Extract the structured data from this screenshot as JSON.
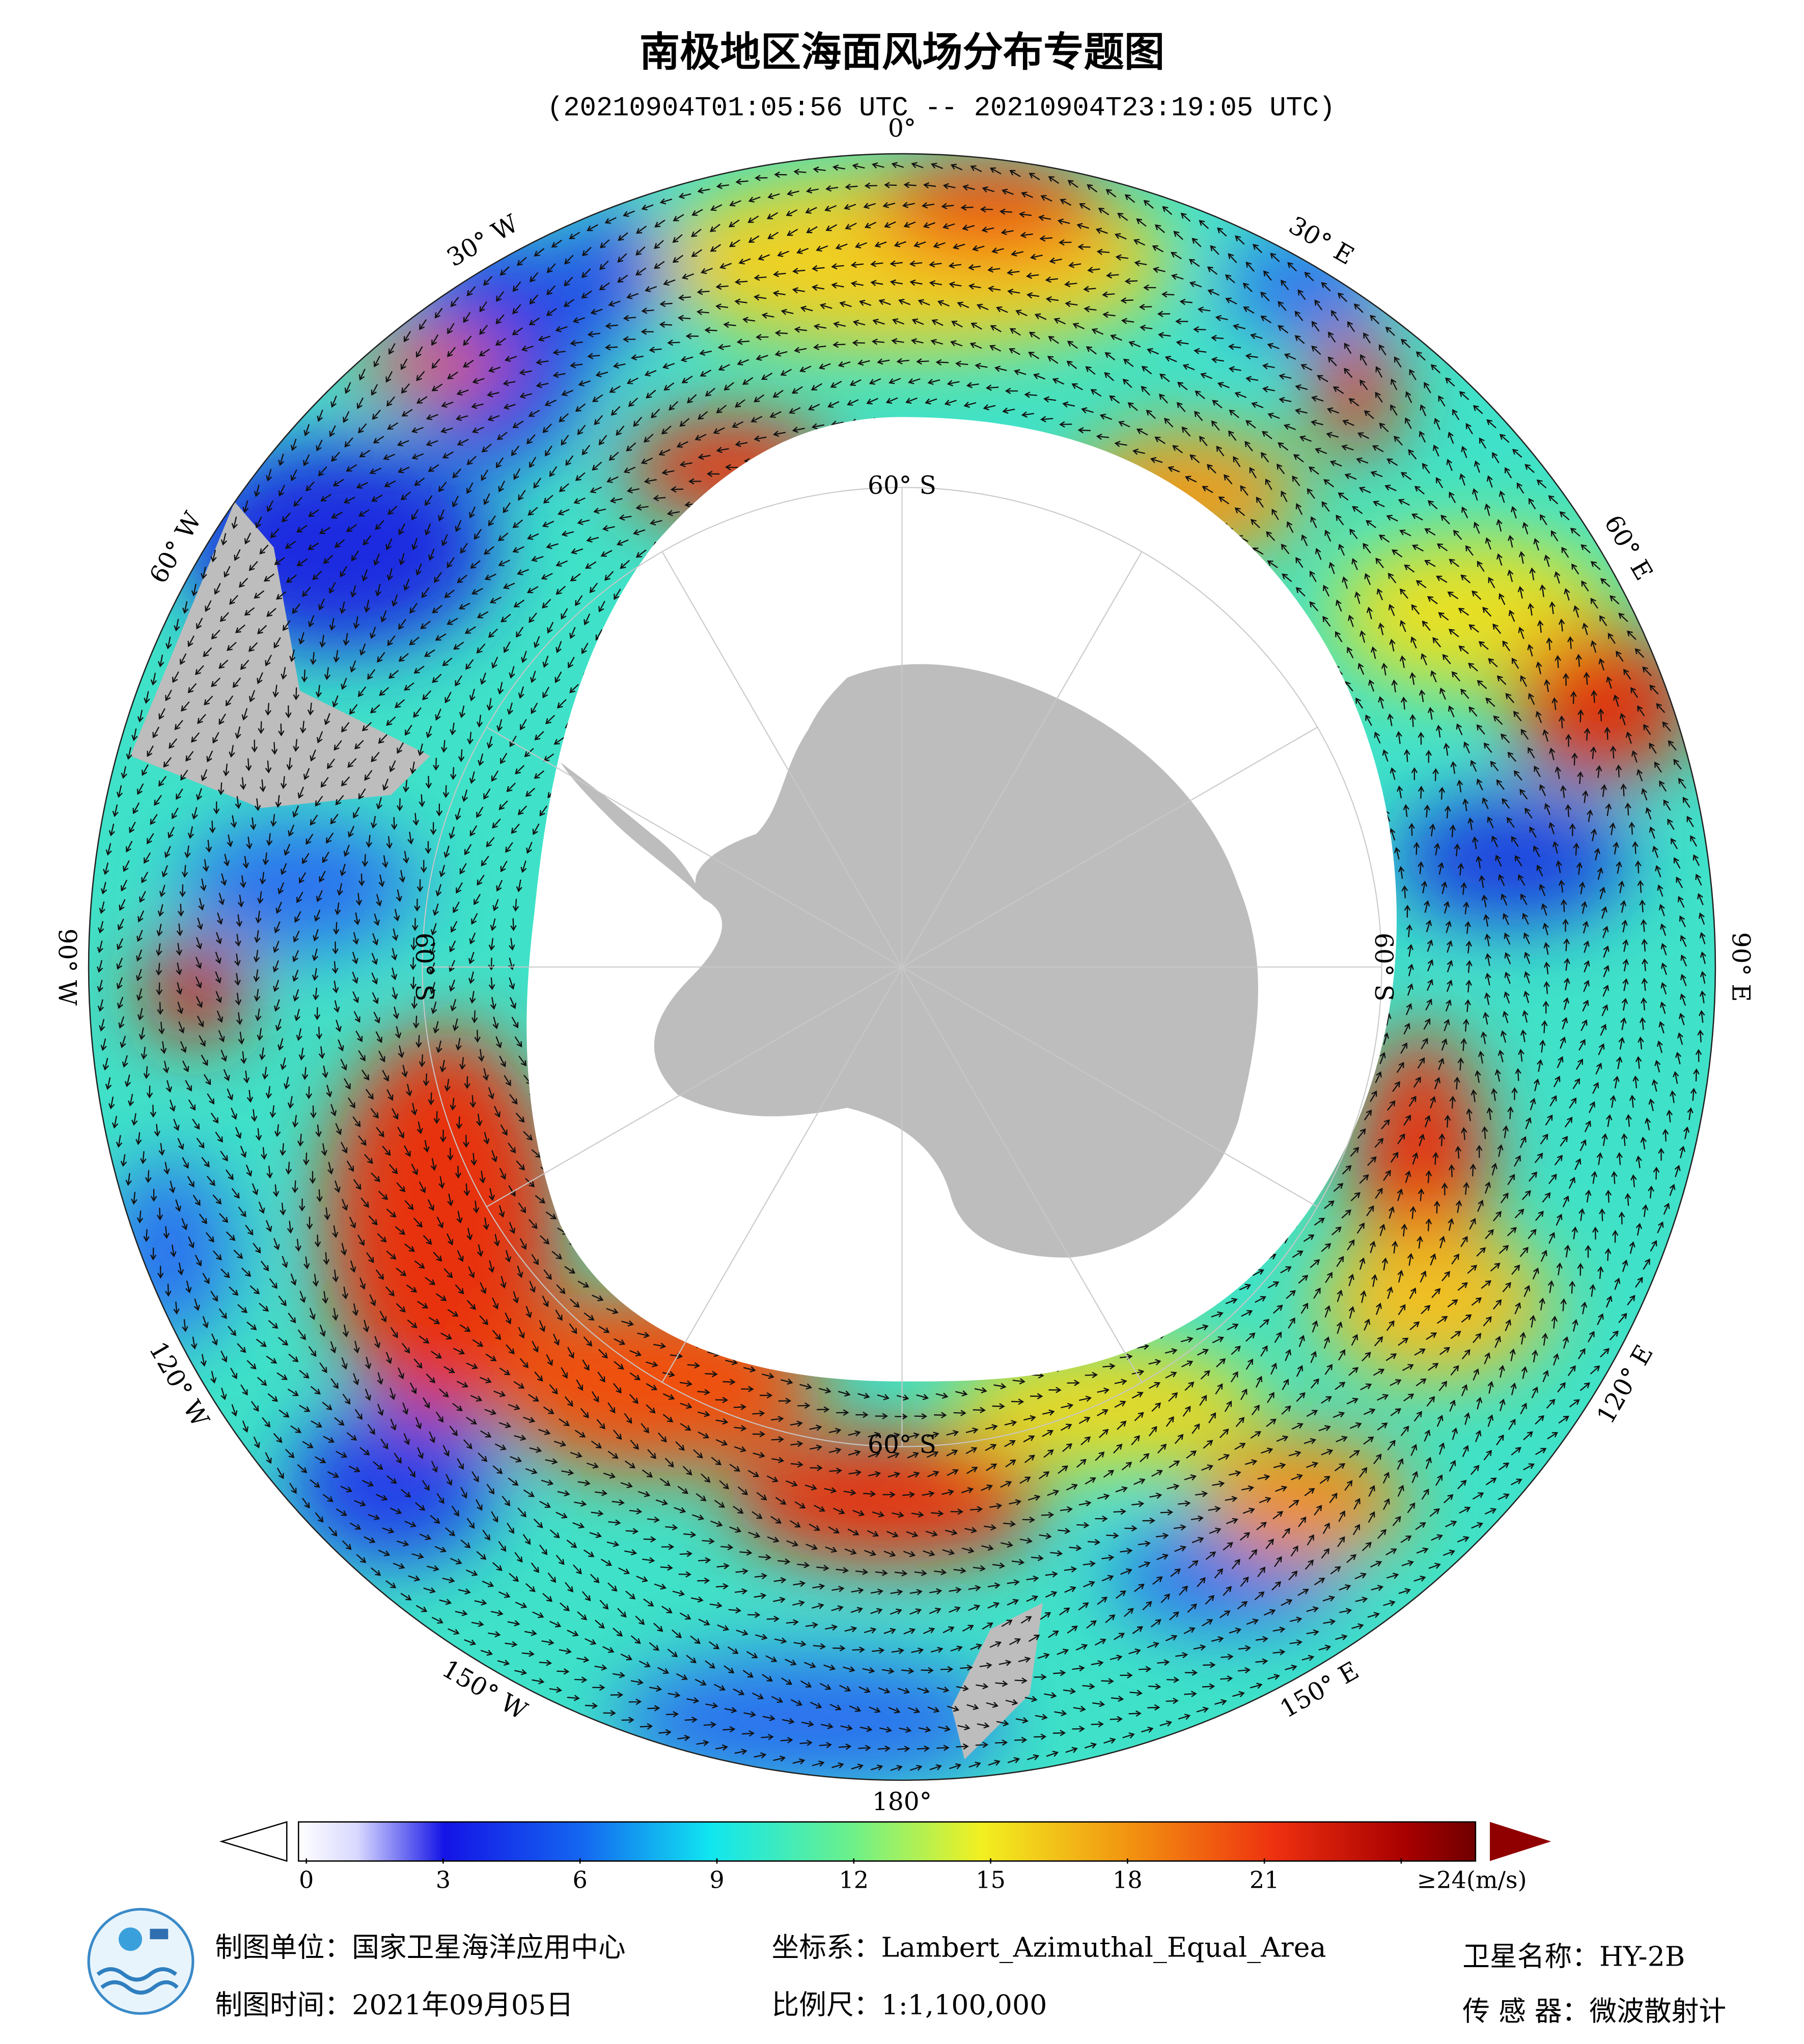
{
  "header": {
    "title": "南极地区海面风场分布专题图",
    "subtitle": "(20210904T01:05:56 UTC -- 20210904T23:19:05 UTC)"
  },
  "map": {
    "lon_labels": [
      "0°",
      "30° E",
      "60° E",
      "90° E",
      "120° E",
      "150° E",
      "180°",
      "150° W",
      "120° W",
      "90° W",
      "60° W",
      "30° W"
    ],
    "lat_labels": [
      "60° S",
      "60° S",
      "60° S",
      "60° S"
    ]
  },
  "colorbar": {
    "ticks": [
      0,
      3,
      6,
      9,
      12,
      15,
      18,
      21,
      {
        "value": 24,
        "label": "≥24(m/s)"
      }
    ]
  },
  "footer": {
    "unit": "制图单位：国家卫星海洋应用中心",
    "date": "制图时间：2021年09月05日",
    "crs": "坐标系：Lambert_Azimuthal_Equal_Area",
    "scale": "比例尺：1:1,100,000",
    "satellite": "卫星名称：HY-2B",
    "sensor": "传 感 器：微波散射计"
  }
}
